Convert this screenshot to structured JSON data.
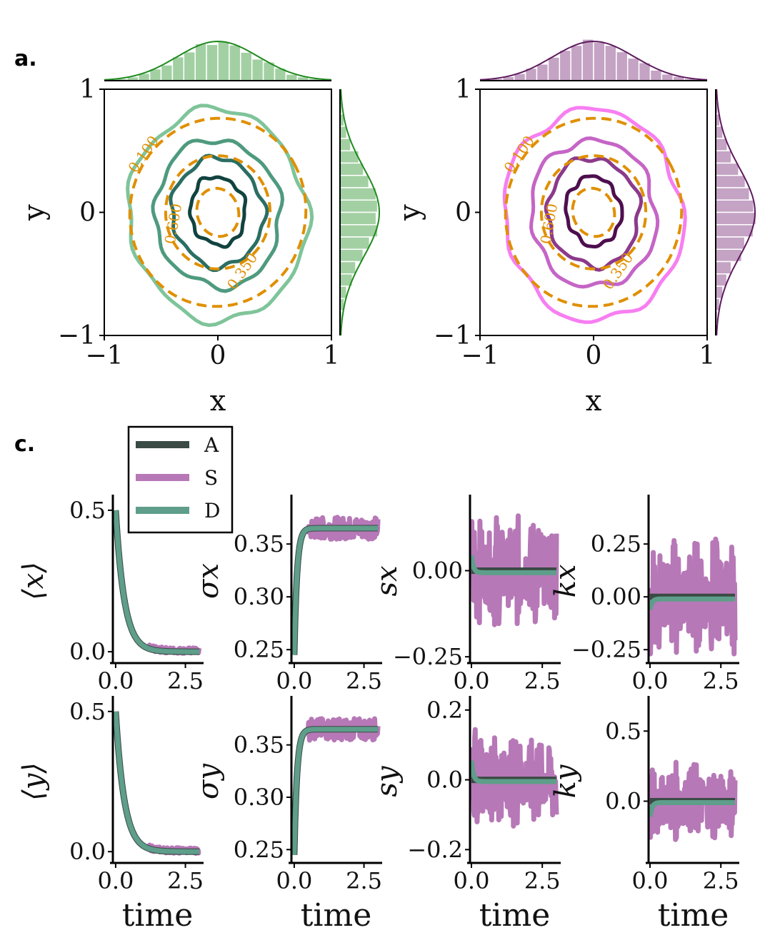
{
  "panel_labels": [
    "a.",
    "c."
  ],
  "colors": {
    "green": "#1e8a1e",
    "green_fill": "#a3d0a3",
    "purple": "#5e1a5e",
    "purple_fill": "#c4a3c4",
    "dashed": "#e08f00",
    "A": "#3a4a44",
    "S": "#b778b7",
    "D": "#5e9e8a"
  },
  "legend": [
    "A",
    "S",
    "D"
  ],
  "chart_data": [
    {
      "type": "contour",
      "panel": "a-left",
      "xlabel": "x",
      "ylabel": "y",
      "xlim": [
        -1,
        1
      ],
      "ylim": [
        -1,
        1
      ],
      "xticks": [
        "−1",
        "0",
        "1"
      ],
      "yticks": [
        "−1",
        "0",
        "1"
      ],
      "contour_labels": [
        "0.100",
        "0.350",
        "0.600"
      ],
      "solid_levels": 4,
      "solid_colors": [
        "#7fc49a",
        "#4e9a7e",
        "#2b6e63",
        "#11433f"
      ],
      "dashed_levels": 3,
      "marginal_color": "#1e8a1e"
    },
    {
      "type": "contour",
      "panel": "a-right",
      "xlabel": "x",
      "ylabel": "y",
      "xlim": [
        -1,
        1
      ],
      "ylim": [
        -1,
        1
      ],
      "xticks": [
        "−1",
        "0",
        "1"
      ],
      "yticks": [
        "−1",
        "0",
        "1"
      ],
      "contour_labels": [
        "0.100",
        "0.350",
        "0.600"
      ],
      "solid_levels": 4,
      "solid_colors": [
        "#f77ef1",
        "#c565c6",
        "#8b3a8b",
        "#4e0f4e"
      ],
      "dashed_levels": 3,
      "marginal_color": "#5e1a5e"
    },
    {
      "type": "line",
      "panel": "c",
      "row": 0,
      "col": 0,
      "ylabel": "⟨x⟩",
      "xlabel": "",
      "xlim": [
        -0.1,
        3.1
      ],
      "ylim": [
        -0.03,
        0.53
      ],
      "xticks": [
        0,
        2.5
      ],
      "xtick_labels": [
        "0.0",
        "2.5"
      ],
      "yticks": [
        0,
        0.5
      ],
      "ytick_labels": [
        "0.0",
        "0.5"
      ],
      "kind": "decay",
      "start": 0.5,
      "end": 0,
      "noise": 0.01
    },
    {
      "type": "line",
      "panel": "c",
      "row": 0,
      "col": 1,
      "ylabel": "σx",
      "xlabel": "",
      "xlim": [
        -0.1,
        3.1
      ],
      "ylim": [
        0.24,
        0.39
      ],
      "xticks": [
        0,
        2.5
      ],
      "xtick_labels": [
        "0.0",
        "2.5"
      ],
      "yticks": [
        0.25,
        0.3,
        0.35
      ],
      "ytick_labels": [
        "0.25",
        "0.30",
        "0.35"
      ],
      "kind": "rise",
      "start": 0.245,
      "end": 0.365,
      "noise": 0.008
    },
    {
      "type": "line",
      "panel": "c",
      "row": 0,
      "col": 2,
      "ylabel": "sx",
      "xlabel": "",
      "xlim": [
        -0.05,
        3.1
      ],
      "ylim": [
        -0.26,
        0.2
      ],
      "xticks": [
        0,
        2.5
      ],
      "xtick_labels": [
        "0.0",
        "2.5"
      ],
      "yticks": [
        -0.25,
        0
      ],
      "ytick_labels": [
        "−0.25",
        "0.00"
      ],
      "kind": "flat",
      "start": 0.05,
      "end": 0,
      "noise": 0.12
    },
    {
      "type": "line",
      "panel": "c",
      "row": 0,
      "col": 3,
      "ylabel": "kx",
      "xlabel": "",
      "xlim": [
        -0.05,
        3.1
      ],
      "ylim": [
        -0.3,
        0.45
      ],
      "xticks": [
        0,
        2.5
      ],
      "xtick_labels": [
        "0.0",
        "2.5"
      ],
      "yticks": [
        -0.25,
        0,
        0.25
      ],
      "ytick_labels": [
        "−0.25",
        "0.00",
        "0.25"
      ],
      "kind": "flat",
      "start": -0.05,
      "end": 0,
      "noise": 0.2
    },
    {
      "type": "line",
      "panel": "c",
      "row": 1,
      "col": 0,
      "ylabel": "⟨y⟩",
      "xlabel": "time",
      "xlim": [
        -0.1,
        3.1
      ],
      "ylim": [
        -0.03,
        0.53
      ],
      "xticks": [
        0,
        2.5
      ],
      "xtick_labels": [
        "0.0",
        "2.5"
      ],
      "yticks": [
        0,
        0.5
      ],
      "ytick_labels": [
        "0.0",
        "0.5"
      ],
      "kind": "decay",
      "start": 0.5,
      "end": 0,
      "noise": 0.01
    },
    {
      "type": "line",
      "panel": "c",
      "row": 1,
      "col": 1,
      "ylabel": "σy",
      "xlabel": "time",
      "xlim": [
        -0.1,
        3.1
      ],
      "ylim": [
        0.24,
        0.39
      ],
      "xticks": [
        0,
        2.5
      ],
      "xtick_labels": [
        "0.0",
        "2.5"
      ],
      "yticks": [
        0.25,
        0.3,
        0.35
      ],
      "ytick_labels": [
        "0.25",
        "0.30",
        "0.35"
      ],
      "kind": "rise",
      "start": 0.245,
      "end": 0.365,
      "noise": 0.008
    },
    {
      "type": "line",
      "panel": "c",
      "row": 1,
      "col": 2,
      "ylabel": "sy",
      "xlabel": "time",
      "xlim": [
        -0.05,
        3.1
      ],
      "ylim": [
        -0.23,
        0.22
      ],
      "xticks": [
        0,
        2.5
      ],
      "xtick_labels": [
        "0.0",
        "2.5"
      ],
      "yticks": [
        -0.2,
        0,
        0.2
      ],
      "ytick_labels": [
        "−0.2",
        "0.0",
        "0.2"
      ],
      "kind": "flat",
      "start": 0.06,
      "end": 0,
      "noise": 0.1
    },
    {
      "type": "line",
      "panel": "c",
      "row": 1,
      "col": 3,
      "ylabel": "ky",
      "xlabel": "time",
      "xlim": [
        -0.05,
        3.1
      ],
      "ylim": [
        -0.42,
        0.7
      ],
      "xticks": [
        0,
        2.5
      ],
      "xtick_labels": [
        "0.0",
        "2.5"
      ],
      "yticks": [
        0,
        0.5
      ],
      "ytick_labels": [
        "0.0",
        "0.5"
      ],
      "kind": "flat",
      "start": -0.1,
      "end": 0,
      "noise": 0.2
    }
  ]
}
